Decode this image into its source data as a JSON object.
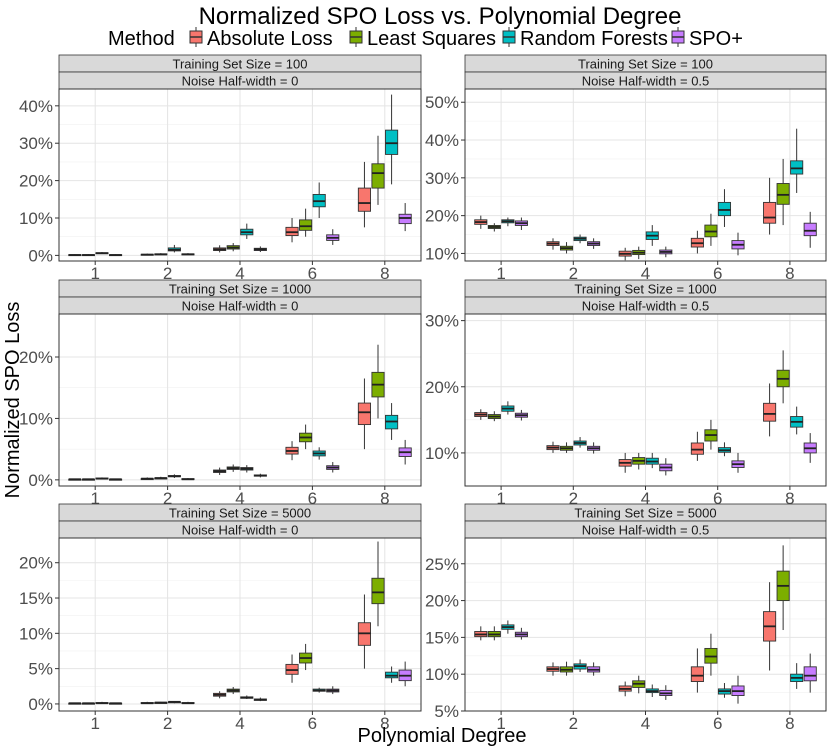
{
  "chart_data": {
    "type": "box",
    "title": "Normalized SPO Loss vs. Polynomial Degree",
    "xlabel": "Polynomial Degree",
    "ylabel": "Normalized SPO Loss",
    "categories": [
      "1",
      "2",
      "4",
      "6",
      "8"
    ],
    "legend": {
      "title": "Method",
      "position": "top",
      "entries": [
        {
          "name": "Absolute Loss",
          "color": "#F8766D"
        },
        {
          "name": "Least Squares",
          "color": "#7CAE00"
        },
        {
          "name": "Random Forests",
          "color": "#00BFC4"
        },
        {
          "name": "SPO+",
          "color": "#C77CFF"
        }
      ]
    },
    "panels": [
      {
        "strip_top": "Training Set Size = 100",
        "strip_bottom": "Noise Half-width = 0",
        "ylim": [
          -0.015,
          0.445
        ],
        "ticks": [
          0,
          0.1,
          0.2,
          0.3,
          0.4
        ],
        "tick_labels": [
          "0%",
          "10%",
          "20%",
          "30%",
          "40%"
        ],
        "boxes": [
          [
            [
              0,
              0,
              0.001,
              0.002,
              0.003
            ],
            [
              0,
              0,
              0.001,
              0.002,
              0.003
            ],
            [
              0.004,
              0.005,
              0.006,
              0.007,
              0.009
            ],
            [
              0,
              0,
              0.001,
              0.002,
              0.003
            ]
          ],
          [
            [
              0,
              0.001,
              0.002,
              0.003,
              0.005
            ],
            [
              0.001,
              0.002,
              0.003,
              0.004,
              0.006
            ],
            [
              0.008,
              0.012,
              0.015,
              0.02,
              0.028
            ],
            [
              0.001,
              0.002,
              0.003,
              0.004,
              0.006
            ]
          ],
          [
            [
              0.008,
              0.013,
              0.016,
              0.02,
              0.027
            ],
            [
              0.011,
              0.017,
              0.021,
              0.026,
              0.033
            ],
            [
              0.044,
              0.055,
              0.062,
              0.07,
              0.085
            ],
            [
              0.009,
              0.013,
              0.016,
              0.019,
              0.024
            ]
          ],
          [
            [
              0.035,
              0.053,
              0.062,
              0.075,
              0.1
            ],
            [
              0.05,
              0.067,
              0.078,
              0.095,
              0.125
            ],
            [
              0.1,
              0.13,
              0.145,
              0.163,
              0.195
            ],
            [
              0.028,
              0.04,
              0.047,
              0.055,
              0.07
            ]
          ],
          [
            [
              0.075,
              0.118,
              0.14,
              0.18,
              0.25
            ],
            [
              0.135,
              0.18,
              0.22,
              0.245,
              0.32
            ],
            [
              0.19,
              0.27,
              0.3,
              0.335,
              0.43
            ],
            [
              0.065,
              0.085,
              0.1,
              0.11,
              0.14
            ]
          ]
        ]
      },
      {
        "strip_top": "Training Set Size = 100",
        "strip_bottom": "Noise Half-width = 0.5",
        "ylim": [
          0.08,
          0.535
        ],
        "ticks": [
          0.1,
          0.2,
          0.3,
          0.4,
          0.5
        ],
        "tick_labels": [
          "10%",
          "20%",
          "30%",
          "40%",
          "50%"
        ],
        "boxes": [
          [
            [
              0.165,
              0.177,
              0.183,
              0.189,
              0.2
            ],
            [
              0.158,
              0.166,
              0.17,
              0.174,
              0.18
            ],
            [
              0.172,
              0.181,
              0.185,
              0.189,
              0.195
            ],
            [
              0.162,
              0.174,
              0.18,
              0.186,
              0.195
            ]
          ],
          [
            [
              0.11,
              0.121,
              0.126,
              0.131,
              0.14
            ],
            [
              0.1,
              0.109,
              0.114,
              0.119,
              0.13
            ],
            [
              0.127,
              0.134,
              0.139,
              0.143,
              0.15
            ],
            [
              0.112,
              0.121,
              0.126,
              0.131,
              0.14
            ]
          ],
          [
            [
              0.082,
              0.093,
              0.099,
              0.106,
              0.115
            ],
            [
              0.085,
              0.097,
              0.102,
              0.108,
              0.118
            ],
            [
              0.12,
              0.137,
              0.147,
              0.157,
              0.175
            ],
            [
              0.09,
              0.099,
              0.104,
              0.109,
              0.118
            ]
          ],
          [
            [
              0.1,
              0.117,
              0.127,
              0.14,
              0.16
            ],
            [
              0.12,
              0.144,
              0.158,
              0.175,
              0.205
            ],
            [
              0.17,
              0.2,
              0.215,
              0.235,
              0.27
            ],
            [
              0.095,
              0.112,
              0.123,
              0.134,
              0.155
            ]
          ],
          [
            [
              0.15,
              0.18,
              0.195,
              0.235,
              0.3
            ],
            [
              0.175,
              0.23,
              0.255,
              0.285,
              0.35
            ],
            [
              0.26,
              0.31,
              0.325,
              0.345,
              0.43
            ],
            [
              0.115,
              0.147,
              0.16,
              0.18,
              0.21
            ]
          ]
        ]
      },
      {
        "strip_top": "Training Set Size = 1000",
        "strip_bottom": "Noise Half-width = 0",
        "ylim": [
          -0.01,
          0.27
        ],
        "ticks": [
          0,
          0.1,
          0.2
        ],
        "tick_labels": [
          "0%",
          "10%",
          "20%"
        ],
        "boxes": [
          [
            [
              0,
              0,
              0.001,
              0.001,
              0.002
            ],
            [
              0,
              0,
              0.001,
              0.001,
              0.002
            ],
            [
              0.001,
              0.002,
              0.002,
              0.003,
              0.004
            ],
            [
              0,
              0,
              0.001,
              0.001,
              0.002
            ]
          ],
          [
            [
              0,
              0.001,
              0.002,
              0.002,
              0.004
            ],
            [
              0.001,
              0.002,
              0.003,
              0.003,
              0.005
            ],
            [
              0.003,
              0.005,
              0.006,
              0.007,
              0.009
            ],
            [
              0,
              0.001,
              0.001,
              0.002,
              0.003
            ]
          ],
          [
            [
              0.008,
              0.012,
              0.014,
              0.016,
              0.02
            ],
            [
              0.013,
              0.017,
              0.019,
              0.021,
              0.025
            ],
            [
              0.012,
              0.016,
              0.018,
              0.02,
              0.024
            ],
            [
              0.004,
              0.006,
              0.007,
              0.008,
              0.01
            ]
          ],
          [
            [
              0.032,
              0.042,
              0.047,
              0.053,
              0.063
            ],
            [
              0.05,
              0.062,
              0.069,
              0.076,
              0.09
            ],
            [
              0.033,
              0.039,
              0.043,
              0.047,
              0.053
            ],
            [
              0.012,
              0.017,
              0.02,
              0.023,
              0.029
            ]
          ],
          [
            [
              0.05,
              0.09,
              0.11,
              0.125,
              0.165
            ],
            [
              0.1,
              0.135,
              0.155,
              0.175,
              0.22
            ],
            [
              0.065,
              0.083,
              0.095,
              0.105,
              0.125
            ],
            [
              0.025,
              0.038,
              0.045,
              0.052,
              0.065
            ]
          ]
        ]
      },
      {
        "strip_top": "Training Set Size = 1000",
        "strip_bottom": "Noise Half-width = 0.5",
        "ylim": [
          0.05,
          0.31
        ],
        "ticks": [
          0.1,
          0.2,
          0.3
        ],
        "tick_labels": [
          "10%",
          "20%",
          "30%"
        ],
        "boxes": [
          [
            [
              0.15,
              0.155,
              0.158,
              0.161,
              0.166
            ],
            [
              0.148,
              0.152,
              0.155,
              0.158,
              0.163
            ],
            [
              0.158,
              0.163,
              0.167,
              0.171,
              0.178
            ],
            [
              0.149,
              0.154,
              0.157,
              0.16,
              0.165
            ]
          ],
          [
            [
              0.1,
              0.105,
              0.108,
              0.111,
              0.117
            ],
            [
              0.1,
              0.104,
              0.107,
              0.11,
              0.116
            ],
            [
              0.108,
              0.112,
              0.115,
              0.118,
              0.124
            ],
            [
              0.099,
              0.104,
              0.107,
              0.11,
              0.116
            ]
          ],
          [
            [
              0.07,
              0.08,
              0.085,
              0.09,
              0.1
            ],
            [
              0.075,
              0.083,
              0.088,
              0.093,
              0.1
            ],
            [
              0.077,
              0.083,
              0.087,
              0.092,
              0.1
            ],
            [
              0.066,
              0.073,
              0.078,
              0.083,
              0.092
            ]
          ],
          [
            [
              0.088,
              0.098,
              0.105,
              0.115,
              0.132
            ],
            [
              0.105,
              0.118,
              0.127,
              0.135,
              0.15
            ],
            [
              0.095,
              0.101,
              0.104,
              0.108,
              0.116
            ],
            [
              0.07,
              0.078,
              0.083,
              0.088,
              0.1
            ]
          ],
          [
            [
              0.125,
              0.148,
              0.159,
              0.175,
              0.205
            ],
            [
              0.175,
              0.2,
              0.212,
              0.225,
              0.255
            ],
            [
              0.128,
              0.139,
              0.147,
              0.155,
              0.17
            ],
            [
              0.085,
              0.1,
              0.107,
              0.115,
              0.13
            ]
          ]
        ]
      },
      {
        "strip_top": "Training Set Size = 5000",
        "strip_bottom": "Noise Half-width = 0",
        "ylim": [
          -0.01,
          0.235
        ],
        "ticks": [
          0,
          0.05,
          0.1,
          0.15,
          0.2
        ],
        "tick_labels": [
          "0%",
          "5%",
          "10%",
          "15%",
          "20%"
        ],
        "boxes": [
          [
            [
              0,
              0,
              0.001,
              0.001,
              0.002
            ],
            [
              0,
              0,
              0.001,
              0.001,
              0.002
            ],
            [
              0,
              0.001,
              0.001,
              0.002,
              0.003
            ],
            [
              0,
              0,
              0.001,
              0.001,
              0.002
            ]
          ],
          [
            [
              0,
              0.001,
              0.001,
              0.002,
              0.003
            ],
            [
              0.001,
              0.001,
              0.002,
              0.002,
              0.003
            ],
            [
              0.001,
              0.002,
              0.003,
              0.003,
              0.004
            ],
            [
              0,
              0.001,
              0.001,
              0.002,
              0.003
            ]
          ],
          [
            [
              0.008,
              0.011,
              0.013,
              0.015,
              0.018
            ],
            [
              0.014,
              0.017,
              0.019,
              0.021,
              0.024
            ],
            [
              0.007,
              0.008,
              0.009,
              0.01,
              0.012
            ],
            [
              0.004,
              0.005,
              0.006,
              0.007,
              0.009
            ]
          ],
          [
            [
              0.03,
              0.042,
              0.048,
              0.056,
              0.07
            ],
            [
              0.048,
              0.058,
              0.065,
              0.072,
              0.085
            ],
            [
              0.016,
              0.018,
              0.019,
              0.021,
              0.023
            ],
            [
              0.014,
              0.017,
              0.019,
              0.021,
              0.025
            ]
          ],
          [
            [
              0.05,
              0.083,
              0.1,
              0.115,
              0.155
            ],
            [
              0.11,
              0.142,
              0.158,
              0.178,
              0.23
            ],
            [
              0.03,
              0.037,
              0.04,
              0.045,
              0.053
            ],
            [
              0.025,
              0.033,
              0.04,
              0.048,
              0.06
            ]
          ]
        ]
      },
      {
        "strip_top": "Training Set Size = 5000",
        "strip_bottom": "Noise Half-width = 0.5",
        "ylim": [
          0.05,
          0.285
        ],
        "ticks": [
          0.05,
          0.1,
          0.15,
          0.2,
          0.25
        ],
        "tick_labels": [
          "5%",
          "10%",
          "15%",
          "20%",
          "25%"
        ],
        "boxes": [
          [
            [
              0.146,
              0.151,
              0.154,
              0.158,
              0.165
            ],
            [
              0.146,
              0.151,
              0.154,
              0.158,
              0.165
            ],
            [
              0.155,
              0.161,
              0.164,
              0.167,
              0.173
            ],
            [
              0.147,
              0.151,
              0.154,
              0.157,
              0.163
            ]
          ],
          [
            [
              0.098,
              0.104,
              0.107,
              0.11,
              0.116
            ],
            [
              0.098,
              0.103,
              0.106,
              0.11,
              0.117
            ],
            [
              0.103,
              0.107,
              0.111,
              0.114,
              0.12
            ],
            [
              0.098,
              0.103,
              0.106,
              0.11,
              0.116
            ]
          ],
          [
            [
              0.07,
              0.077,
              0.08,
              0.084,
              0.09
            ],
            [
              0.074,
              0.082,
              0.087,
              0.091,
              0.098
            ],
            [
              0.069,
              0.075,
              0.077,
              0.08,
              0.086
            ],
            [
              0.065,
              0.071,
              0.074,
              0.078,
              0.085
            ]
          ],
          [
            [
              0.075,
              0.09,
              0.098,
              0.11,
              0.135
            ],
            [
              0.098,
              0.115,
              0.124,
              0.135,
              0.155
            ],
            [
              0.068,
              0.073,
              0.077,
              0.08,
              0.088
            ],
            [
              0.06,
              0.071,
              0.077,
              0.084,
              0.098
            ]
          ],
          [
            [
              0.105,
              0.145,
              0.165,
              0.185,
              0.225
            ],
            [
              0.16,
              0.2,
              0.22,
              0.24,
              0.275
            ],
            [
              0.08,
              0.09,
              0.095,
              0.1,
              0.115
            ],
            [
              0.075,
              0.091,
              0.098,
              0.11,
              0.128
            ]
          ]
        ]
      }
    ]
  }
}
